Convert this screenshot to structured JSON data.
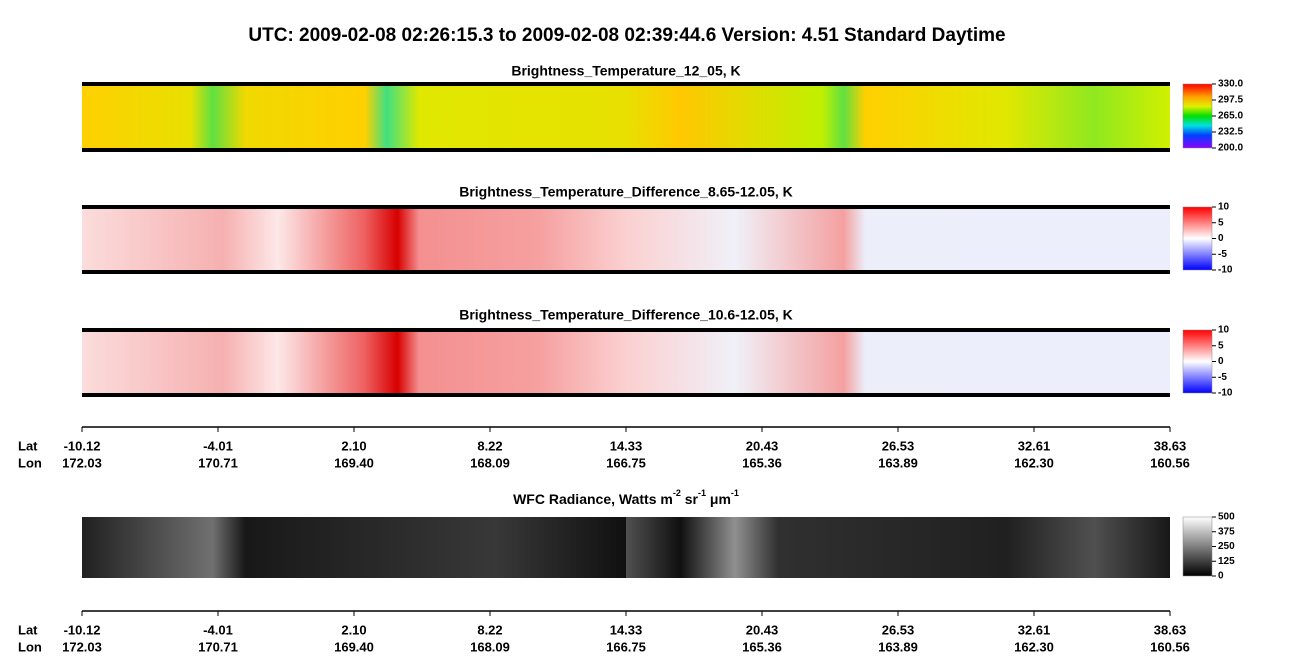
{
  "title": "UTC:  2009-02-08   02:26:15.3  to  2009-02-08   02:39:44.6    Version: 4.51  Standard Daytime",
  "chart_data": [
    {
      "type": "heatmap",
      "title": "Brightness_Temperature_12_05, K",
      "colormap": "rainbow",
      "clim": [
        200,
        330
      ],
      "cticks": [
        {
          "value": 330,
          "label": "330.0"
        },
        297.5,
        {
          "value": 265,
          "label": "265.0"
        },
        232.5,
        {
          "value": 200,
          "label": "200.0"
        }
      ]
    },
    {
      "type": "heatmap",
      "title": "Brightness_Temperature_Difference_8.65-12.05, K",
      "colormap": "bwr",
      "clim": [
        -10,
        10
      ],
      "cticks": [
        10,
        5,
        0,
        -5,
        -10
      ]
    },
    {
      "type": "heatmap",
      "title": "Brightness_Temperature_Difference_10.6-12.05, K",
      "colormap": "bwr",
      "clim": [
        -10,
        10
      ],
      "cticks": [
        10,
        5,
        0,
        -5,
        -10
      ]
    },
    {
      "type": "heatmap",
      "title_parts": [
        "WFC Radiance, Watts m",
        "-2",
        " sr",
        "-1",
        " μm",
        "-1"
      ],
      "colormap": "gray",
      "clim": [
        0,
        500
      ],
      "cticks": [
        500,
        375,
        250,
        125,
        0
      ]
    }
  ],
  "location_axes": [
    {
      "lat_label": "Lat",
      "lon_label": "Lon",
      "lat": [
        "-10.12",
        "-4.01",
        "2.10",
        "8.22",
        "14.33",
        "20.43",
        "26.53",
        "32.61",
        "38.63"
      ],
      "lon": [
        "172.03",
        "170.71",
        "169.40",
        "168.09",
        "166.75",
        "165.36",
        "163.89",
        "162.30",
        "160.56"
      ]
    },
    {
      "lat_label": "Lat",
      "lon_label": "Lon",
      "lat": [
        "-10.12",
        "-4.01",
        "2.10",
        "8.22",
        "14.33",
        "20.43",
        "26.53",
        "32.61",
        "38.63"
      ],
      "lon": [
        "172.03",
        "170.71",
        "169.40",
        "168.09",
        "166.75",
        "165.36",
        "163.89",
        "162.30",
        "160.56"
      ]
    }
  ]
}
